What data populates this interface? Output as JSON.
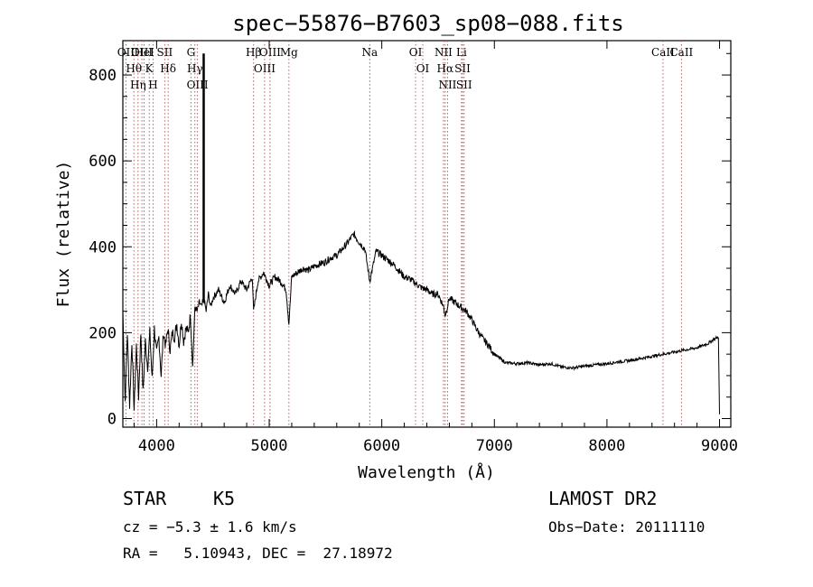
{
  "chart_data": {
    "type": "line",
    "title": "spec−55876−B7603_sp08−088.fits",
    "xlabel": "Wavelength (Å)",
    "ylabel": "Flux (relative)",
    "xlim": [
      3700,
      9100
    ],
    "ylim": [
      -20,
      880
    ],
    "x_ticks": [
      4000,
      5000,
      6000,
      7000,
      8000,
      9000
    ],
    "y_ticks": [
      0,
      200,
      400,
      600,
      800
    ],
    "grid": false,
    "series": [
      {
        "x": [
          3700,
          3720,
          3740,
          3760,
          3780,
          3800,
          3820,
          3840,
          3860,
          3880,
          3900,
          3920,
          3940,
          3960,
          3980,
          4000,
          4020,
          4040,
          4060,
          4080,
          4100,
          4120,
          4140,
          4160,
          4180,
          4200,
          4220,
          4240,
          4260,
          4280,
          4300,
          4320,
          4340,
          4360,
          4380,
          4400,
          4420,
          4440,
          4460,
          4480,
          4500,
          4550,
          4600,
          4650,
          4700,
          4750,
          4800,
          4850,
          4861,
          4900,
          4950,
          5000,
          5050,
          5100,
          5150,
          5175,
          5200,
          5250,
          5300,
          5350,
          5400,
          5450,
          5500,
          5550,
          5600,
          5650,
          5700,
          5750,
          5800,
          5850,
          5893,
          5950,
          6000,
          6050,
          6100,
          6150,
          6200,
          6250,
          6300,
          6350,
          6400,
          6450,
          6500,
          6550,
          6563,
          6600,
          6650,
          6700,
          6750,
          6800,
          6850,
          6900,
          6950,
          7000,
          7050,
          7100,
          7200,
          7300,
          7400,
          7500,
          7600,
          7700,
          7800,
          7900,
          8000,
          8100,
          8200,
          8300,
          8400,
          8500,
          8600,
          8700,
          8800,
          8900,
          8950,
          8990,
          9000
        ],
        "y": [
          250,
          40,
          200,
          30,
          180,
          20,
          170,
          50,
          200,
          60,
          180,
          120,
          200,
          90,
          210,
          150,
          190,
          100,
          200,
          170,
          210,
          160,
          200,
          190,
          220,
          170,
          230,
          180,
          210,
          200,
          240,
          120,
          260,
          250,
          270,
          260,
          280,
          250,
          290,
          260,
          280,
          300,
          270,
          310,
          290,
          320,
          300,
          330,
          250,
          320,
          340,
          310,
          330,
          320,
          300,
          220,
          330,
          340,
          350,
          345,
          355,
          360,
          365,
          375,
          380,
          395,
          410,
          430,
          410,
          395,
          320,
          390,
          380,
          370,
          360,
          345,
          330,
          325,
          315,
          305,
          300,
          290,
          290,
          260,
          240,
          280,
          270,
          260,
          250,
          230,
          205,
          185,
          170,
          150,
          140,
          130,
          128,
          130,
          125,
          128,
          120,
          118,
          122,
          125,
          128,
          132,
          135,
          140,
          145,
          150,
          155,
          160,
          165,
          175,
          185,
          190,
          10
        ]
      }
    ],
    "annotations": [
      {
        "label": "Hθ",
        "wavelength": 3798
      },
      {
        "label": "OII",
        "wavelength": 3727
      },
      {
        "label": "OIII",
        "wavelength": 3869
      },
      {
        "label": "Hη",
        "wavelength": 3835
      },
      {
        "label": "K",
        "wavelength": 3934
      },
      {
        "label": "HeI",
        "wavelength": 3889
      },
      {
        "label": "H",
        "wavelength": 3969
      },
      {
        "label": "SII",
        "wavelength": 4072
      },
      {
        "label": "Hδ",
        "wavelength": 4102
      },
      {
        "label": "OIII",
        "wavelength": 4363
      },
      {
        "label": "Hγ",
        "wavelength": 4340
      },
      {
        "label": "G",
        "wavelength": 4305
      },
      {
        "label": "Hβ",
        "wavelength": 4861
      },
      {
        "label": "OIII",
        "wavelength": 4959
      },
      {
        "label": "OIII",
        "wavelength": 5007
      },
      {
        "label": "Mg",
        "wavelength": 5175
      },
      {
        "label": "Na",
        "wavelength": 5893
      },
      {
        "label": "OI",
        "wavelength": 6300
      },
      {
        "label": "OI",
        "wavelength": 6364
      },
      {
        "label": "Hα",
        "wavelength": 6563
      },
      {
        "label": "NII",
        "wavelength": 6548
      },
      {
        "label": "NII",
        "wavelength": 6584
      },
      {
        "label": "SII",
        "wavelength": 6717
      },
      {
        "label": "Li",
        "wavelength": 6708
      },
      {
        "label": "SII",
        "wavelength": 6731
      },
      {
        "label": "CaII",
        "wavelength": 8498
      },
      {
        "label": "CaII",
        "wavelength": 8662
      }
    ]
  },
  "footer": {
    "class_label": "STAR",
    "subclass": "K5",
    "survey": "LAMOST DR2",
    "cz_text": "cz = −5.3 ± 1.6 km/s",
    "obs_date": "Obs−Date: 20111110",
    "radec_text": "RA =   5.10943, DEC =  27.18972"
  },
  "colors": {
    "axis": "#000000",
    "spectrum": "#000000",
    "line_marker": "#d04040"
  }
}
